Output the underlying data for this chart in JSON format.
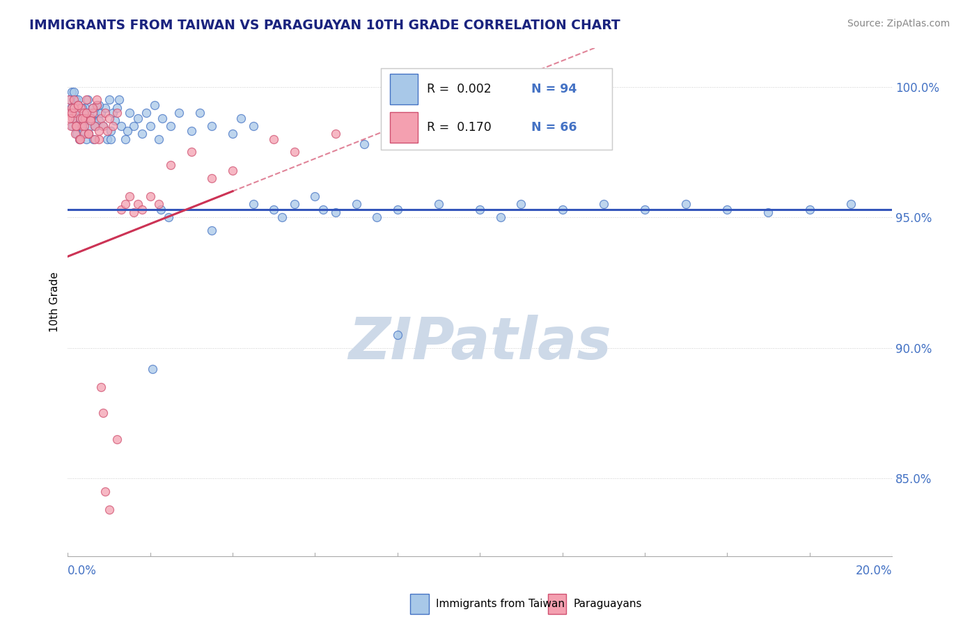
{
  "title": "IMMIGRANTS FROM TAIWAN VS PARAGUAYAN 10TH GRADE CORRELATION CHART",
  "source": "Source: ZipAtlas.com",
  "ylabel": "10th Grade",
  "xlim": [
    0.0,
    20.0
  ],
  "ylim": [
    82.0,
    101.5
  ],
  "yticks": [
    85.0,
    90.0,
    95.0,
    100.0
  ],
  "ytick_labels": [
    "85.0%",
    "90.0%",
    "95.0%",
    "100.0%"
  ],
  "blue_color": "#a8c8e8",
  "blue_edge": "#4472c4",
  "pink_color": "#f4a0b0",
  "pink_edge": "#d05070",
  "trend_blue_color": "#3355bb",
  "trend_pink_color": "#cc3355",
  "watermark_text": "ZIPatlas",
  "watermark_color": "#cdd9e8",
  "legend_r1": "R = 0.002",
  "legend_n1": "N = 94",
  "legend_r2": "R = 0.170",
  "legend_n2": "N = 66",
  "blue_scatter_x": [
    0.05,
    0.08,
    0.1,
    0.12,
    0.15,
    0.18,
    0.2,
    0.22,
    0.25,
    0.28,
    0.3,
    0.32,
    0.35,
    0.38,
    0.4,
    0.42,
    0.45,
    0.48,
    0.5,
    0.52,
    0.55,
    0.58,
    0.6,
    0.62,
    0.65,
    0.68,
    0.7,
    0.75,
    0.8,
    0.85,
    0.9,
    0.95,
    1.0,
    1.05,
    1.1,
    1.15,
    1.2,
    1.3,
    1.4,
    1.5,
    1.6,
    1.7,
    1.8,
    1.9,
    2.0,
    2.1,
    2.2,
    2.3,
    2.5,
    2.7,
    3.0,
    3.2,
    3.5,
    4.0,
    4.2,
    4.5,
    5.0,
    5.5,
    6.0,
    6.5,
    7.0,
    7.2,
    7.5,
    8.0,
    9.0,
    10.0,
    10.5,
    11.0,
    12.0,
    13.0,
    14.0,
    15.0,
    16.0,
    17.0,
    18.0,
    19.0,
    0.15,
    0.25,
    0.35,
    0.45,
    0.55,
    0.65,
    0.75,
    1.05,
    1.25,
    1.45,
    2.05,
    2.25,
    2.45,
    3.5,
    4.5,
    5.2,
    6.2,
    8.0
  ],
  "blue_scatter_y": [
    99.5,
    99.2,
    99.8,
    98.5,
    99.0,
    98.8,
    99.5,
    98.2,
    99.3,
    98.0,
    98.8,
    98.5,
    99.0,
    98.3,
    98.7,
    99.2,
    98.0,
    99.5,
    98.2,
    99.0,
    98.5,
    98.8,
    99.2,
    98.0,
    99.0,
    98.5,
    99.3,
    98.7,
    99.0,
    98.5,
    99.2,
    98.0,
    99.5,
    98.3,
    99.0,
    98.7,
    99.2,
    98.5,
    98.0,
    99.0,
    98.5,
    98.8,
    98.2,
    99.0,
    98.5,
    99.3,
    98.0,
    98.8,
    98.5,
    99.0,
    98.3,
    99.0,
    98.5,
    98.2,
    98.8,
    98.5,
    95.3,
    95.5,
    95.8,
    95.2,
    95.5,
    97.8,
    95.0,
    95.3,
    95.5,
    95.3,
    95.0,
    95.5,
    95.3,
    95.5,
    95.3,
    95.5,
    95.3,
    95.2,
    95.3,
    95.5,
    99.8,
    99.5,
    99.2,
    99.0,
    98.8,
    98.5,
    99.3,
    98.0,
    99.5,
    98.3,
    89.2,
    95.3,
    95.0,
    94.5,
    95.5,
    95.0,
    95.3,
    90.5
  ],
  "pink_scatter_x": [
    0.02,
    0.05,
    0.08,
    0.1,
    0.12,
    0.15,
    0.18,
    0.2,
    0.22,
    0.25,
    0.28,
    0.3,
    0.32,
    0.35,
    0.38,
    0.4,
    0.42,
    0.45,
    0.5,
    0.55,
    0.6,
    0.65,
    0.7,
    0.75,
    0.8,
    0.85,
    0.9,
    0.95,
    1.0,
    1.1,
    1.2,
    1.3,
    1.4,
    1.5,
    1.6,
    1.7,
    1.8,
    2.0,
    2.2,
    2.5,
    3.0,
    3.5,
    4.0,
    5.0,
    5.5,
    6.5,
    0.05,
    0.1,
    0.15,
    0.2,
    0.25,
    0.3,
    0.35,
    0.4,
    0.45,
    0.5,
    0.55,
    0.6,
    0.65,
    0.7,
    0.75,
    0.8,
    0.85,
    0.9,
    1.0,
    1.2
  ],
  "pink_scatter_y": [
    99.5,
    99.0,
    98.5,
    99.2,
    98.8,
    99.5,
    98.2,
    99.0,
    98.5,
    99.3,
    98.0,
    98.8,
    99.2,
    98.5,
    99.0,
    98.2,
    98.8,
    99.5,
    98.2,
    98.8,
    99.0,
    98.5,
    99.3,
    98.0,
    98.8,
    98.5,
    99.0,
    98.3,
    98.8,
    98.5,
    99.0,
    95.3,
    95.5,
    95.8,
    95.2,
    95.5,
    95.3,
    95.8,
    95.5,
    97.0,
    97.5,
    96.5,
    96.8,
    98.0,
    97.5,
    98.2,
    98.8,
    99.0,
    99.2,
    98.5,
    99.3,
    98.0,
    98.8,
    98.5,
    99.0,
    98.2,
    98.7,
    99.2,
    98.0,
    99.5,
    98.3,
    88.5,
    87.5,
    84.5,
    83.8,
    86.5
  ],
  "blue_trend_slope": 0.0,
  "blue_trend_intercept": 95.3,
  "pink_trend_x0": 0.0,
  "pink_trend_y0": 93.5,
  "pink_trend_x1": 8.0,
  "pink_trend_y1": 98.5
}
